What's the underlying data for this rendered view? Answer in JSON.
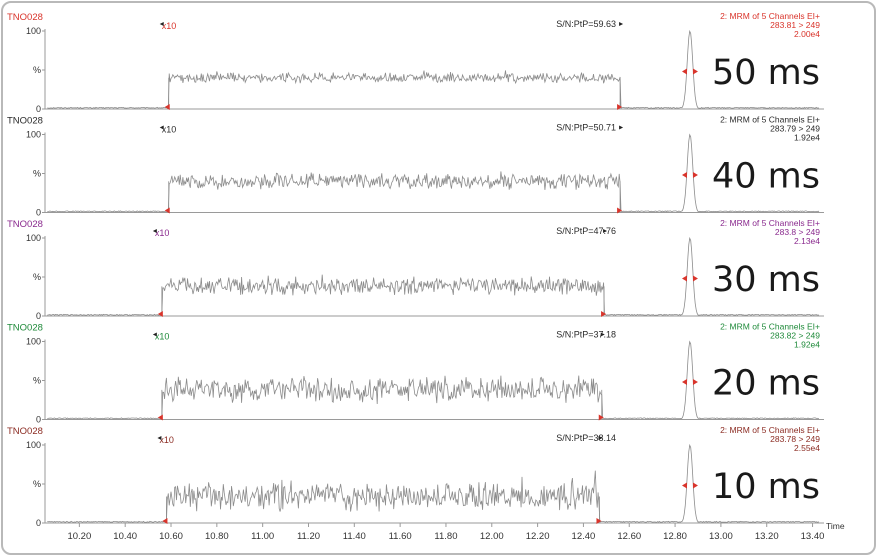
{
  "chart_data": {
    "type": "line",
    "figure": "stacked chromatograms",
    "shared_x_axis": {
      "label": "Time",
      "range": [
        10.05,
        13.45
      ],
      "ticks": [
        "10.20",
        "10.40",
        "10.60",
        "10.80",
        "11.00",
        "11.20",
        "11.40",
        "11.60",
        "11.80",
        "12.00",
        "12.20",
        "12.40",
        "12.60",
        "12.80",
        "13.00",
        "13.20",
        "13.40"
      ]
    },
    "y_axis": {
      "range": [
        0,
        100
      ],
      "ticks": [
        "100",
        "%",
        "0"
      ]
    },
    "panels": [
      {
        "sample": "TNO028",
        "dwell_label": "50 ms",
        "color": "#d9342b",
        "channel": "2: MRM of 5 Channels EI+",
        "transition": "283.81 > 249",
        "intensity": "2.00e4",
        "sn": "S/N:PtP=59.63",
        "zoom": "x10",
        "zoom_start": 10.59,
        "zoom_end": 12.56,
        "peak_rt": 12.865,
        "noise_level": 40,
        "noise_amp": 5
      },
      {
        "sample": "TNO028",
        "dwell_label": "40 ms",
        "color": "#2a2a2a",
        "channel": "2: MRM of 5 Channels EI+",
        "transition": "283.79 > 249",
        "intensity": "1.92e4",
        "sn": "S/N:PtP=50.71",
        "zoom": "x10",
        "zoom_start": 10.59,
        "zoom_end": 12.56,
        "peak_rt": 12.865,
        "noise_level": 40,
        "noise_amp": 8
      },
      {
        "sample": "TNO028",
        "dwell_label": "30 ms",
        "color": "#8a2a8e",
        "channel": "2: MRM of 5 Channels EI+",
        "transition": "283.8 > 249",
        "intensity": "2.13e4",
        "sn": "S/N:PtP=47.76",
        "zoom": "x10",
        "zoom_start": 10.56,
        "zoom_end": 12.49,
        "peak_rt": 12.865,
        "noise_level": 38,
        "noise_amp": 9
      },
      {
        "sample": "TNO028",
        "dwell_label": "20 ms",
        "color": "#1f8a3a",
        "channel": "2: MRM of 5 Channels EI+",
        "transition": "283.82 > 249",
        "intensity": "1.92e4",
        "sn": "S/N:PtP=37.18",
        "zoom": "x10",
        "zoom_start": 10.56,
        "zoom_end": 12.48,
        "peak_rt": 12.865,
        "noise_level": 38,
        "noise_amp": 13
      },
      {
        "sample": "TNO028",
        "dwell_label": "10 ms",
        "color": "#8b2b22",
        "channel": "2: MRM of 5 Channels EI+",
        "transition": "283.78 > 249",
        "intensity": "2.55e4",
        "sn": "S/N:PtP=38.14",
        "zoom": "x10",
        "zoom_start": 10.58,
        "zoom_end": 12.47,
        "peak_rt": 12.865,
        "noise_level": 34,
        "noise_amp": 14
      }
    ]
  }
}
